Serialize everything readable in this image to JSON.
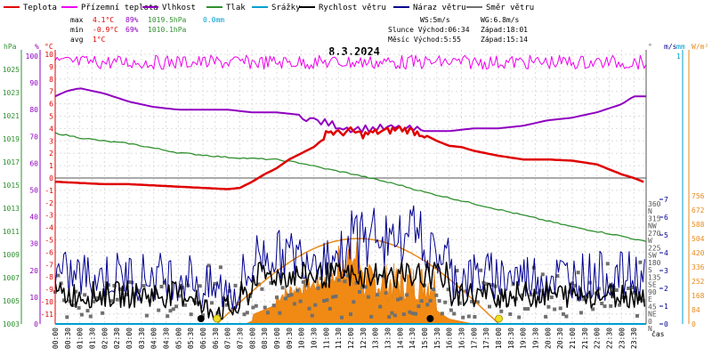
{
  "chart_data": {
    "type": "line",
    "title": "8.3.2024",
    "legend": [
      {
        "key": "teplota",
        "label": "Teplota",
        "color": "#e00000"
      },
      {
        "key": "pocitova",
        "label": "Přízemní teplota",
        "color": "#ee00ee"
      },
      {
        "key": "vlhkost",
        "label": "Vlhkost",
        "color": "#9000c0"
      },
      {
        "key": "tlak",
        "label": "Tlak",
        "color": "#309030"
      },
      {
        "key": "srazky",
        "label": "Srážky",
        "color": "#00a0d0"
      },
      {
        "key": "rychlost",
        "label": "Rychlost větru",
        "color": "#000000"
      },
      {
        "key": "naraz",
        "label": "Náraz větru",
        "color": "#000090"
      },
      {
        "key": "smer",
        "label": "Směr větru",
        "color": "#707070"
      }
    ],
    "stats": {
      "max": {
        "label": "max",
        "temp": "4.1°C",
        "hum": "89%",
        "press": "1019.5hPa",
        "rain": "0.0mm"
      },
      "min": {
        "label": "min",
        "temp": "-0.9°C",
        "hum": "69%",
        "press": "1010.1hPa"
      },
      "avg": {
        "label": "avg",
        "temp": "1°C"
      }
    },
    "info": {
      "ws": "WS:5m/s",
      "wg": "WG:6.8m/s",
      "sun": "Slunce Východ:06:34",
      "sun_set": "Západ:18:01",
      "moon": "Měsíc Východ:5:55",
      "moon_set": "Západ:15:14"
    },
    "axes": {
      "left_temp": {
        "unit": "°C",
        "ticks": [
          "10",
          "9",
          "8",
          "7",
          "6",
          "5",
          "4",
          "3",
          "2",
          "1",
          "0",
          "-1",
          "-2",
          "-3",
          "-4",
          "-5",
          "-6",
          "-7",
          "-8",
          "-9",
          "-10",
          "-11"
        ]
      },
      "left_hum": {
        "unit": "%",
        "ticks": [
          "100",
          "90",
          "80",
          "70",
          "60",
          "50",
          "40",
          "30",
          "20",
          "10",
          "0"
        ]
      },
      "left_press": {
        "unit": "hPa",
        "ticks": [
          "1025",
          "1023",
          "1021",
          "1019",
          "1017",
          "1015",
          "1013",
          "1011",
          "1009",
          "1007",
          "1005",
          "1003"
        ]
      },
      "right_dir": {
        "unit": "°",
        "ticks": [
          {
            "deg": "360",
            "abbr": "N"
          },
          {
            "deg": "315",
            "abbr": "NW"
          },
          {
            "deg": "270",
            "abbr": "W"
          },
          {
            "deg": "225",
            "abbr": "SW"
          },
          {
            "deg": "180",
            "abbr": "S"
          },
          {
            "deg": "135",
            "abbr": "SE"
          },
          {
            "deg": "90",
            "abbr": "E"
          },
          {
            "deg": "45",
            "abbr": "NE"
          },
          {
            "deg": "0",
            "abbr": "N"
          }
        ]
      },
      "right_ms": {
        "unit": "m/s",
        "top": "7",
        "ticks": [
          "7",
          "6",
          "5",
          "4",
          "3",
          "2",
          "1",
          "0"
        ]
      },
      "right_mm": {
        "unit": "mm",
        "top": "1"
      },
      "right_wm2": {
        "unit": "W/m²",
        "ticks": [
          "756",
          "672",
          "588",
          "504",
          "420",
          "336",
          "252",
          "168",
          "84",
          "0"
        ]
      },
      "x_label": "čas",
      "x_ticks": [
        "00:00",
        "00:30",
        "01:00",
        "01:30",
        "02:00",
        "02:30",
        "03:00",
        "03:30",
        "04:00",
        "04:30",
        "05:00",
        "05:30",
        "06:00",
        "06:30",
        "07:00",
        "07:30",
        "08:00",
        "08:30",
        "09:00",
        "09:30",
        "10:00",
        "10:30",
        "11:00",
        "11:30",
        "12:00",
        "12:30",
        "13:00",
        "13:30",
        "14:00",
        "14:30",
        "15:00",
        "15:30",
        "16:00",
        "16:30",
        "17:00",
        "17:30",
        "18:00",
        "18:30",
        "19:00",
        "19:30",
        "20:00",
        "20:30",
        "21:00",
        "21:30",
        "22:00",
        "22:30",
        "23:00",
        "23:30"
      ]
    },
    "series": {
      "teplota": {
        "name": "Teplota",
        "unit": "°C",
        "x": [
          0,
          1,
          2,
          3,
          4,
          5,
          6,
          7,
          7.5,
          8,
          8.5,
          9,
          9.5,
          10,
          10.5,
          10.8,
          11,
          11.5,
          12,
          12.5,
          13,
          13.5,
          14,
          14.5,
          15,
          15.5,
          16,
          16.5,
          17,
          18,
          19,
          20,
          21,
          22,
          22.5,
          23,
          23.5,
          24
        ],
        "y": [
          -0.3,
          -0.4,
          -0.5,
          -0.5,
          -0.6,
          -0.7,
          -0.8,
          -0.9,
          -0.8,
          -0.3,
          0.3,
          0.8,
          1.5,
          2,
          2.5,
          3,
          3.8,
          3.6,
          3.8,
          3.5,
          3.7,
          3.8,
          4.0,
          3.8,
          3.5,
          3.0,
          2.6,
          2.5,
          2.2,
          1.8,
          1.5,
          1.5,
          1.4,
          1.1,
          0.7,
          0.3,
          0,
          -0.4
        ]
      },
      "vlhkost": {
        "name": "Vlhkost",
        "unit": "%",
        "x": [
          0,
          0.5,
          1,
          2,
          3,
          4,
          5,
          6,
          7,
          8,
          9,
          10,
          10.5,
          11,
          11.5,
          12,
          13,
          14,
          15,
          16,
          17,
          18,
          19,
          20,
          21,
          22,
          23,
          23.5,
          24
        ],
        "y": [
          85,
          87,
          88,
          86,
          83,
          81,
          80,
          80,
          80,
          79,
          79,
          78,
          76,
          75,
          74,
          73,
          73,
          73,
          72,
          72,
          73,
          73,
          74,
          76,
          77,
          79,
          82,
          85,
          85
        ]
      },
      "tlak": {
        "name": "Tlak",
        "unit": "hPa",
        "x": [
          0,
          1,
          2,
          3,
          4,
          5,
          6,
          7,
          8,
          9,
          10,
          11,
          12,
          13,
          14,
          15,
          16,
          17,
          18,
          19,
          20,
          21,
          22,
          23,
          24
        ],
        "y": [
          1019.5,
          1019.1,
          1018.8,
          1018.6,
          1018.2,
          1017.8,
          1017.6,
          1017.4,
          1017.3,
          1017.2,
          1016.9,
          1016.4,
          1016.0,
          1015.5,
          1015.0,
          1014.4,
          1013.9,
          1013.4,
          1012.9,
          1012.4,
          1011.9,
          1011.4,
          1011.0,
          1010.6,
          1010.1
        ]
      },
      "rychlost": {
        "name": "Rychlost větru",
        "unit": "m/s"
      },
      "naraz": {
        "name": "Náraz větru",
        "unit": "m/s"
      },
      "smer": {
        "name": "Směr větru",
        "unit": "°"
      },
      "radiace": {
        "name": "Sluneční záření",
        "unit": "W/m²"
      },
      "clear_sky": {
        "name": "Teoretické záření",
        "unit": "W/m²",
        "peak": 504
      }
    }
  }
}
